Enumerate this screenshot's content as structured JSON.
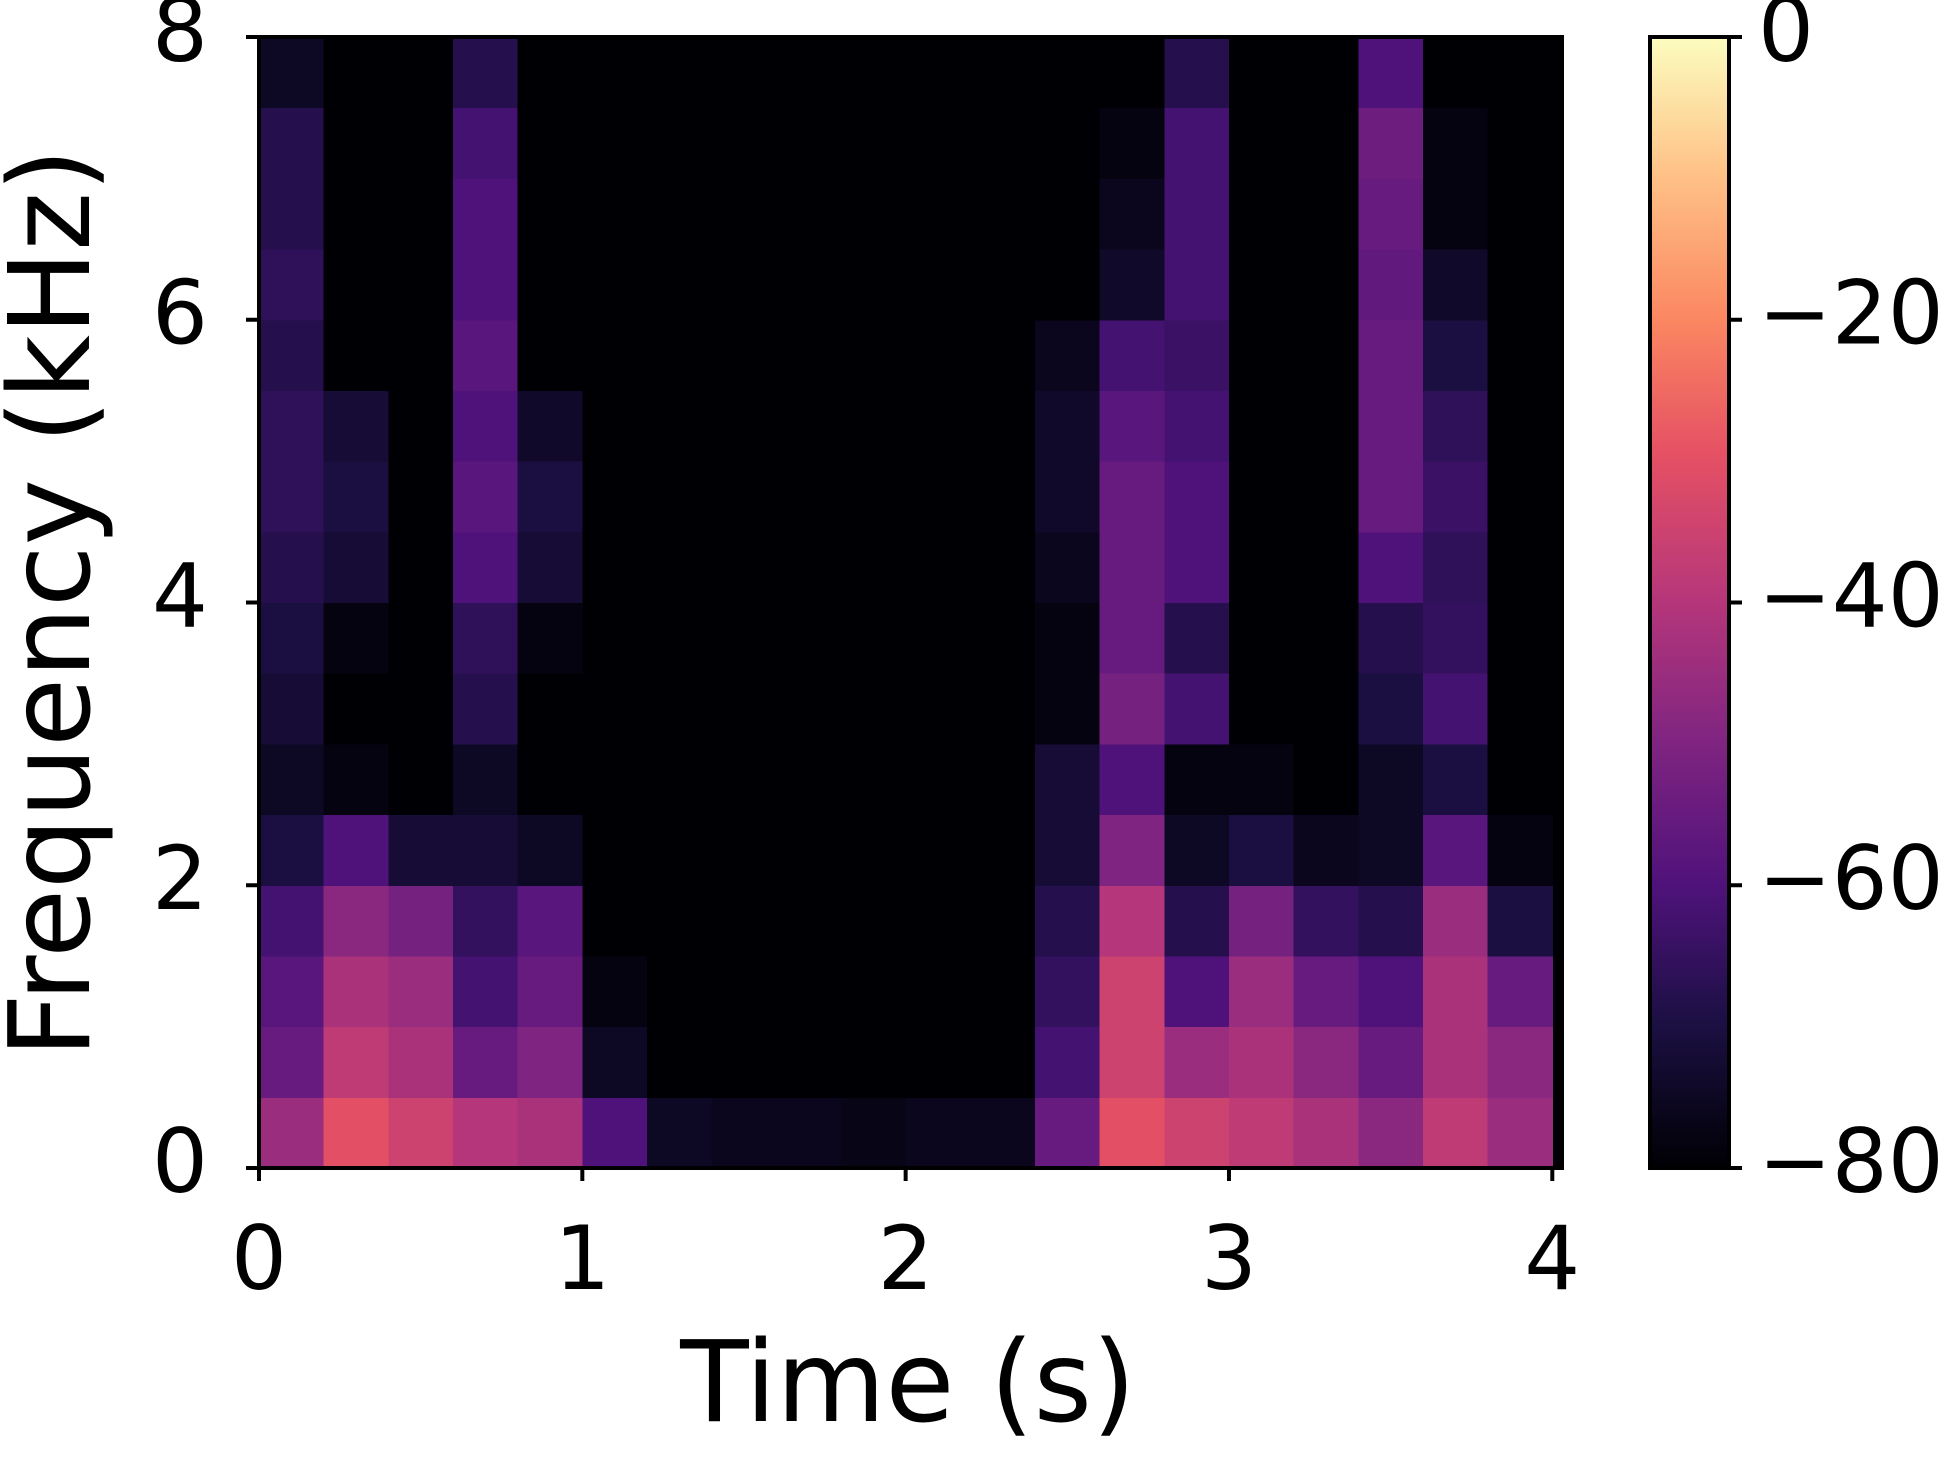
{
  "chart_data": {
    "type": "heatmap",
    "xlabel": "Time (s)",
    "ylabel": "Frequency (kHz)",
    "colormap": "magma",
    "xlim": [
      0,
      4.03
    ],
    "ylim": [
      0,
      8
    ],
    "zlim": [
      -80,
      0
    ],
    "xticks": [
      0,
      1,
      2,
      3,
      4
    ],
    "yticks": [
      0,
      2,
      4,
      6,
      8
    ],
    "zticks": [
      {
        "value": 0,
        "label": "0"
      },
      {
        "value": -20,
        "label": "−20"
      },
      {
        "value": -40,
        "label": "−40"
      },
      {
        "value": -60,
        "label": "−60"
      },
      {
        "value": -80,
        "label": "−80"
      }
    ],
    "xbins": [
      0,
      0.2,
      0.4,
      0.6,
      0.8,
      1.0,
      1.2,
      1.4,
      1.6,
      1.8,
      2.0,
      2.2,
      2.4,
      2.6,
      2.8,
      3.0,
      3.2,
      3.4,
      3.6,
      3.8,
      4.0
    ],
    "ybins": [
      0,
      0.5,
      1,
      1.5,
      2,
      2.5,
      3,
      3.5,
      4,
      4.5,
      5,
      5.5,
      6,
      6.5,
      7,
      7.5,
      8
    ],
    "z": [
      [
        -45,
        -30,
        -35,
        -40,
        -42,
        -60,
        -75,
        -76,
        -76,
        -77,
        -76,
        -76,
        -55,
        -30,
        -35,
        -38,
        -42,
        -48,
        -38,
        -45
      ],
      [
        -55,
        -38,
        -42,
        -55,
        -50,
        -75,
        -80,
        -80,
        -80,
        -80,
        -80,
        -80,
        -62,
        -35,
        -45,
        -42,
        -48,
        -55,
        -42,
        -48
      ],
      [
        -58,
        -42,
        -45,
        -62,
        -55,
        -78,
        -80,
        -80,
        -80,
        -80,
        -80,
        -80,
        -65,
        -35,
        -60,
        -45,
        -55,
        -60,
        -42,
        -55
      ],
      [
        -62,
        -48,
        -52,
        -65,
        -58,
        -80,
        -80,
        -80,
        -80,
        -80,
        -80,
        -80,
        -68,
        -40,
        -68,
        -52,
        -65,
        -68,
        -45,
        -70
      ],
      [
        -70,
        -60,
        -72,
        -72,
        -75,
        -80,
        -80,
        -80,
        -80,
        -80,
        -80,
        -80,
        -72,
        -50,
        -75,
        -70,
        -76,
        -75,
        -58,
        -78
      ],
      [
        -75,
        -78,
        -80,
        -75,
        -80,
        -80,
        -80,
        -80,
        -80,
        -80,
        -80,
        -80,
        -72,
        -60,
        -78,
        -78,
        -80,
        -75,
        -70,
        -80
      ],
      [
        -72,
        -80,
        -80,
        -68,
        -80,
        -80,
        -80,
        -80,
        -80,
        -80,
        -80,
        -80,
        -78,
        -52,
        -62,
        -80,
        -80,
        -70,
        -62,
        -80
      ],
      [
        -70,
        -78,
        -80,
        -66,
        -78,
        -80,
        -80,
        -80,
        -80,
        -80,
        -80,
        -80,
        -78,
        -55,
        -68,
        -80,
        -80,
        -68,
        -65,
        -80
      ],
      [
        -68,
        -72,
        -80,
        -60,
        -72,
        -80,
        -80,
        -80,
        -80,
        -80,
        -80,
        -80,
        -76,
        -55,
        -60,
        -80,
        -80,
        -60,
        -66,
        -80
      ],
      [
        -66,
        -70,
        -80,
        -58,
        -70,
        -80,
        -80,
        -80,
        -80,
        -80,
        -80,
        -80,
        -74,
        -55,
        -60,
        -80,
        -80,
        -55,
        -64,
        -80
      ],
      [
        -66,
        -72,
        -80,
        -60,
        -74,
        -80,
        -80,
        -80,
        -80,
        -80,
        -80,
        -80,
        -74,
        -58,
        -62,
        -80,
        -80,
        -55,
        -66,
        -80
      ],
      [
        -68,
        -80,
        -80,
        -58,
        -80,
        -80,
        -80,
        -80,
        -80,
        -80,
        -80,
        -80,
        -76,
        -62,
        -64,
        -80,
        -80,
        -55,
        -70,
        -80
      ],
      [
        -66,
        -80,
        -80,
        -60,
        -80,
        -80,
        -80,
        -80,
        -80,
        -80,
        -80,
        -80,
        -80,
        -74,
        -62,
        -80,
        -80,
        -56,
        -74,
        -80
      ],
      [
        -68,
        -80,
        -80,
        -60,
        -80,
        -80,
        -80,
        -80,
        -80,
        -80,
        -80,
        -80,
        -80,
        -76,
        -62,
        -80,
        -80,
        -55,
        -78,
        -80
      ],
      [
        -68,
        -80,
        -80,
        -62,
        -80,
        -80,
        -80,
        -80,
        -80,
        -80,
        -80,
        -80,
        -80,
        -78,
        -62,
        -80,
        -80,
        -54,
        -78,
        -80
      ],
      [
        -75,
        -80,
        -80,
        -68,
        -80,
        -80,
        -80,
        -80,
        -80,
        -80,
        -80,
        -80,
        -80,
        -80,
        -68,
        -80,
        -80,
        -60,
        -80,
        -80
      ]
    ]
  }
}
